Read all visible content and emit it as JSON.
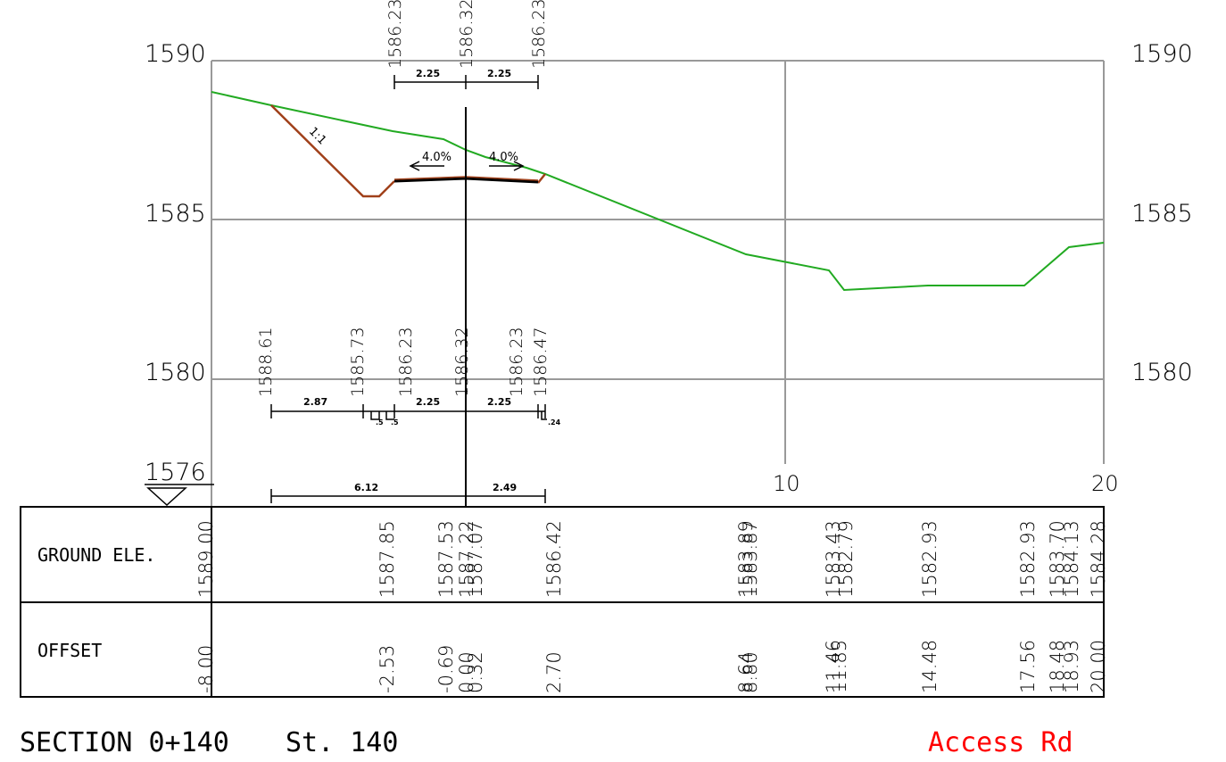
{
  "elevation_labels": {
    "left": [
      "1590",
      "1585",
      "1580"
    ],
    "right": [
      "1590",
      "1585",
      "1580"
    ],
    "datum": "1576"
  },
  "offset_axis_labels": [
    "10",
    "20"
  ],
  "top_dims": {
    "elevations": [
      "1586.23",
      "1586.32",
      "1586.23"
    ],
    "widths": [
      "2.25",
      "2.25"
    ]
  },
  "slope_labels": {
    "side_slope": "1:1",
    "left_crossfall": "4.0%",
    "right_crossfall": "4.0%"
  },
  "bottom_dims": {
    "elevations": [
      "1588.61",
      "1585.73",
      "1586.23",
      "1586.32",
      "1586.23",
      "1586.47"
    ],
    "widths": [
      "2.87",
      "2.25",
      "2.25"
    ],
    "small_widths": [
      ".5",
      ".5",
      ".24"
    ]
  },
  "overall_dims": [
    "6.12",
    "2.49"
  ],
  "table": {
    "ground_title": "GROUND ELE.",
    "offset_title": "OFFSET",
    "ground_values": [
      "1589.00",
      "1587.85",
      "1587.53",
      "1587.22",
      "1587.07",
      "1586.42",
      "1583.89",
      "1583.87",
      "1583.43",
      "1582.79",
      "1582.93",
      "1582.93",
      "1583.70",
      "1584.13",
      "1584.28"
    ],
    "offset_values": [
      "-8.00",
      "-2.53",
      "-0.69",
      "0.00",
      "0.32",
      "2.70",
      "8.64",
      "8.80",
      "11.46",
      "11.85",
      "14.48",
      "17.56",
      "18.48",
      "18.93",
      "20.00"
    ]
  },
  "footer": {
    "section": "SECTION 0+140",
    "station": "St. 140",
    "road": "Access Rd"
  },
  "colors": {
    "ground": "#22aa22",
    "cut_slope": "#a0401a",
    "grid": "#999999",
    "pavement": "#000000",
    "road_name": "#ff0000"
  }
}
